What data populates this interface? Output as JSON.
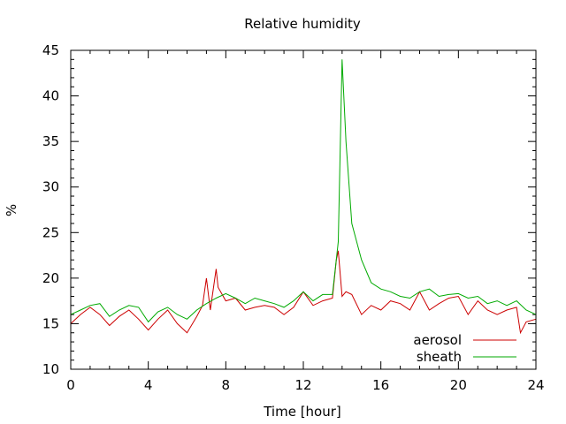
{
  "chart_data": {
    "type": "line",
    "title": "Relative humidity",
    "xlabel": "Time [hour]",
    "ylabel": "%",
    "xlim": [
      0,
      24
    ],
    "ylim": [
      10,
      45
    ],
    "xticks": [
      0,
      4,
      8,
      12,
      16,
      20,
      24
    ],
    "yticks": [
      10,
      15,
      20,
      25,
      30,
      35,
      40,
      45
    ],
    "grid": false,
    "legend_position": "bottom-right",
    "series": [
      {
        "name": "aerosol",
        "color": "#cc0000",
        "x": [
          0,
          0.5,
          1,
          1.5,
          2,
          2.5,
          3,
          3.5,
          4,
          4.5,
          5,
          5.5,
          6,
          6.5,
          6.8,
          7,
          7.2,
          7.5,
          7.6,
          8,
          8.5,
          9,
          9.5,
          10,
          10.5,
          11,
          11.5,
          12,
          12.5,
          13,
          13.5,
          13.7,
          13.8,
          14,
          14.2,
          14.5,
          15,
          15.5,
          16,
          16.5,
          17,
          17.5,
          18,
          18.5,
          19,
          19.5,
          20,
          20.5,
          21,
          21.5,
          22,
          22.5,
          23,
          23.2,
          23.5,
          24
        ],
        "y": [
          15,
          16,
          16.8,
          16,
          14.8,
          15.8,
          16.5,
          15.5,
          14.3,
          15.5,
          16.5,
          15,
          14,
          15.8,
          17,
          20,
          16.5,
          21,
          19,
          17.5,
          17.8,
          16.5,
          16.8,
          17,
          16.8,
          16,
          16.8,
          18.5,
          17,
          17.5,
          17.8,
          22,
          23,
          18,
          18.5,
          18.2,
          16,
          17,
          16.5,
          17.5,
          17.2,
          16.5,
          18.5,
          16.5,
          17.2,
          17.8,
          18,
          16,
          17.5,
          16.5,
          16,
          16.5,
          16.8,
          14,
          15.2,
          15.5
        ]
      },
      {
        "name": "sheath",
        "color": "#00aa00",
        "x": [
          0,
          0.5,
          1,
          1.5,
          2,
          2.5,
          3,
          3.5,
          4,
          4.5,
          5,
          5.5,
          6,
          6.5,
          7,
          7.5,
          8,
          8.5,
          9,
          9.5,
          10,
          10.5,
          11,
          11.5,
          12,
          12.5,
          13,
          13.5,
          13.8,
          14,
          14.2,
          14.5,
          15,
          15.5,
          16,
          16.5,
          17,
          17.5,
          18,
          18.5,
          19,
          19.5,
          20,
          20.5,
          21,
          21.5,
          22,
          22.5,
          23,
          23.5,
          24
        ],
        "y": [
          16,
          16.5,
          17,
          17.2,
          15.8,
          16.5,
          17,
          16.8,
          15.2,
          16.3,
          16.8,
          16,
          15.5,
          16.5,
          17.2,
          17.8,
          18.3,
          17.8,
          17.2,
          17.8,
          17.5,
          17.2,
          16.8,
          17.5,
          18.5,
          17.5,
          18.2,
          18.2,
          24,
          44,
          35,
          26,
          22,
          19.5,
          18.8,
          18.5,
          18,
          17.8,
          18.5,
          18.8,
          18,
          18.2,
          18.3,
          17.8,
          18,
          17.2,
          17.5,
          17,
          17.5,
          16.5,
          16
        ]
      }
    ]
  }
}
